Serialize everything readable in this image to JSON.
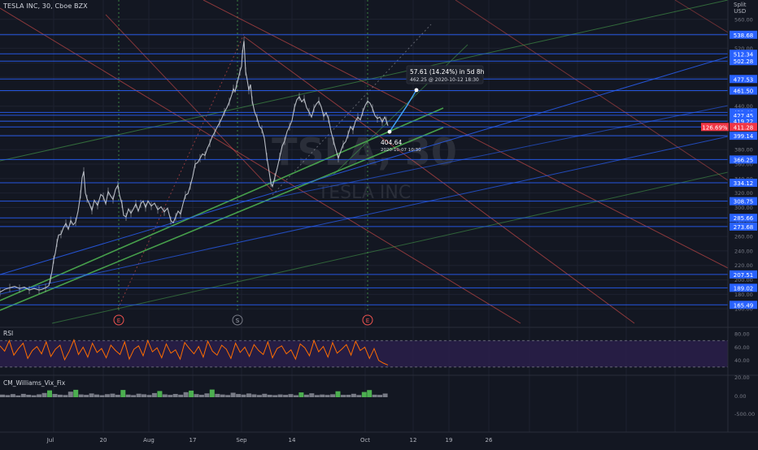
{
  "header": {
    "symbol_line": "TESLA INC, 30, Cboe BZX"
  },
  "currency": {
    "line1": "Split",
    "line2": "USD"
  },
  "watermark": {
    "ticker": "TSLA, 30",
    "name": "TESLA INC"
  },
  "colors": {
    "background": "#131722",
    "grid": "#1e2230",
    "level_line": "#2962ff",
    "price_line": "#c8ccd4",
    "green_line": "#4caf50",
    "red_line": "#ef5350",
    "rsi_line": "#ff6d00",
    "rsi_band": "#2a1f4a",
    "vix_green": "#4caf50",
    "vix_gray": "#787b86",
    "label_blue": "#2962ff",
    "label_red": "#f23645"
  },
  "chart_data": [
    {
      "type": "line",
      "title": "TESLA INC, 30, Cboe BZX",
      "series": [],
      "xlabel": "",
      "ylabel": "",
      "ylim": [
        140,
        580
      ],
      "x_ticks": [
        "Jul",
        "20",
        "Aug",
        "17",
        "Sep",
        "14",
        "Oct",
        "12",
        "19",
        "26"
      ],
      "y_ticks": [
        560,
        540,
        520,
        500,
        480,
        460,
        440,
        420,
        400,
        380,
        360,
        340,
        320,
        300,
        280,
        260,
        240,
        220,
        200,
        180,
        160
      ],
      "price_path": [
        [
          0,
          183
        ],
        [
          6,
          187
        ],
        [
          12,
          189
        ],
        [
          18,
          191
        ],
        [
          24,
          188
        ],
        [
          30,
          190
        ],
        [
          36,
          186
        ],
        [
          42,
          188
        ],
        [
          48,
          186
        ],
        [
          52,
          187
        ],
        [
          56,
          189
        ],
        [
          60,
          192
        ],
        [
          62,
          201
        ],
        [
          64,
          212
        ],
        [
          66,
          228
        ],
        [
          68,
          237
        ],
        [
          70,
          251
        ],
        [
          72,
          262
        ],
        [
          75,
          263
        ],
        [
          78,
          272
        ],
        [
          81,
          278
        ],
        [
          84,
          270
        ],
        [
          87,
          282
        ],
        [
          90,
          276
        ],
        [
          93,
          280
        ],
        [
          96,
          295
        ],
        [
          99,
          318
        ],
        [
          101,
          341
        ],
        [
          103,
          350
        ],
        [
          105,
          320
        ],
        [
          107,
          312
        ],
        [
          110,
          305
        ],
        [
          113,
          296
        ],
        [
          116,
          310
        ],
        [
          120,
          303
        ],
        [
          124,
          318
        ],
        [
          127,
          315
        ],
        [
          130,
          305
        ],
        [
          133,
          322
        ],
        [
          136,
          316
        ],
        [
          139,
          311
        ],
        [
          142,
          325
        ],
        [
          145,
          331
        ],
        [
          147,
          317
        ],
        [
          150,
          305
        ],
        [
          152,
          289
        ],
        [
          155,
          287
        ],
        [
          158,
          298
        ],
        [
          161,
          292
        ],
        [
          164,
          298
        ],
        [
          167,
          305
        ],
        [
          170,
          295
        ],
        [
          173,
          305
        ],
        [
          176,
          309
        ],
        [
          179,
          300
        ],
        [
          182,
          309
        ],
        [
          186,
          302
        ],
        [
          190,
          306
        ],
        [
          194,
          297
        ],
        [
          198,
          301
        ],
        [
          202,
          294
        ],
        [
          206,
          299
        ],
        [
          210,
          282
        ],
        [
          213,
          279
        ],
        [
          216,
          287
        ],
        [
          219,
          295
        ],
        [
          222,
          291
        ],
        [
          225,
          305
        ],
        [
          228,
          317
        ],
        [
          231,
          319
        ],
        [
          234,
          330
        ],
        [
          237,
          343
        ],
        [
          240,
          360
        ],
        [
          243,
          362
        ],
        [
          246,
          368
        ],
        [
          249,
          374
        ],
        [
          252,
          372
        ],
        [
          255,
          382
        ],
        [
          258,
          389
        ],
        [
          261,
          398
        ],
        [
          264,
          404
        ],
        [
          267,
          411
        ],
        [
          270,
          417
        ],
        [
          273,
          424
        ],
        [
          276,
          432
        ],
        [
          279,
          438
        ],
        [
          282,
          446
        ],
        [
          285,
          456
        ],
        [
          287,
          464
        ],
        [
          289,
          460
        ],
        [
          291,
          470
        ],
        [
          293,
          478
        ],
        [
          295,
          488
        ],
        [
          297,
          495
        ],
        [
          298,
          512
        ],
        [
          299,
          522
        ],
        [
          300,
          530
        ],
        [
          301,
          510
        ],
        [
          302,
          488
        ],
        [
          304,
          476
        ],
        [
          306,
          462
        ],
        [
          308,
          470
        ],
        [
          310,
          448
        ],
        [
          313,
          432
        ],
        [
          316,
          424
        ],
        [
          319,
          412
        ],
        [
          322,
          408
        ],
        [
          325,
          396
        ],
        [
          328,
          370
        ],
        [
          331,
          349
        ],
        [
          333,
          334
        ],
        [
          335,
          329
        ],
        [
          338,
          342
        ],
        [
          341,
          355
        ],
        [
          344,
          370
        ],
        [
          347,
          385
        ],
        [
          350,
          392
        ],
        [
          353,
          405
        ],
        [
          356,
          412
        ],
        [
          359,
          420
        ],
        [
          362,
          438
        ],
        [
          365,
          449
        ],
        [
          368,
          453
        ],
        [
          371,
          446
        ],
        [
          374,
          450
        ],
        [
          377,
          438
        ],
        [
          380,
          432
        ],
        [
          383,
          425
        ],
        [
          386,
          437
        ],
        [
          389,
          443
        ],
        [
          392,
          447
        ],
        [
          395,
          439
        ],
        [
          398,
          426
        ],
        [
          401,
          431
        ],
        [
          404,
          422
        ],
        [
          407,
          405
        ],
        [
          410,
          392
        ],
        [
          413,
          380
        ],
        [
          416,
          368
        ],
        [
          419,
          378
        ],
        [
          422,
          387
        ],
        [
          425,
          391
        ],
        [
          428,
          401
        ],
        [
          431,
          412
        ],
        [
          434,
          407
        ],
        [
          437,
          419
        ],
        [
          440,
          425
        ],
        [
          443,
          421
        ],
        [
          446,
          432
        ],
        [
          449,
          441
        ],
        [
          452,
          447
        ],
        [
          455,
          444
        ],
        [
          458,
          437
        ],
        [
          461,
          427
        ],
        [
          464,
          423
        ],
        [
          467,
          425
        ],
        [
          470,
          418
        ],
        [
          473,
          425
        ],
        [
          475,
          420
        ],
        [
          477,
          413
        ]
      ],
      "levels": [
        538.68,
        512.34,
        502.28,
        477.53,
        461.5,
        431.46,
        427.45,
        419.22,
        411.28,
        399.14,
        366.25,
        334.12,
        308.75,
        285.66,
        273.68,
        207.51,
        189.02,
        165.49
      ],
      "level_labels": [
        "538.68",
        "512.34",
        "502.28",
        "477.53",
        "461.50",
        "431.46",
        "427.45",
        "419.22",
        "411.28",
        "399.14",
        "366.25",
        "334.12",
        "308.75",
        "285.66",
        "273.68",
        "207.51",
        "189.02",
        "165.49"
      ],
      "current_price": 411.28,
      "current_label": "411.28",
      "percent_label": "126.69%",
      "annotations": {
        "projection_label": "57.61 (14.24%) in 5d 8h",
        "projection_sub": "462.25 @ 2020-10-12  18:30",
        "low_label": "404.64",
        "low_sub": "2020-10-07 10:30"
      },
      "markers": [
        "E",
        "S",
        "E"
      ]
    },
    {
      "type": "line",
      "title": "RSI",
      "series": [],
      "y_ticks": [
        80,
        60,
        40
      ],
      "band": [
        30,
        70
      ],
      "values": [
        62,
        54,
        70,
        48,
        58,
        66,
        43,
        55,
        61,
        50,
        68,
        46,
        57,
        63,
        41,
        54,
        71,
        49,
        60,
        45,
        66,
        52,
        58,
        44,
        63,
        55,
        49,
        68,
        42,
        57,
        62,
        47,
        70,
        53,
        59,
        44,
        65,
        51,
        56,
        42,
        67,
        58,
        50,
        61,
        45,
        69,
        54,
        48,
        63,
        57,
        43,
        66,
        52,
        60,
        46,
        64,
        55,
        49,
        68,
        44,
        58,
        62,
        50,
        56,
        42,
        65,
        59,
        47,
        70,
        53,
        61,
        45,
        67,
        51,
        57,
        64,
        48,
        69,
        55,
        60,
        43,
        58,
        40,
        36,
        33
      ]
    },
    {
      "type": "bar",
      "title": "CM_Williams_Vix_Fix",
      "series": [],
      "y_ticks": [
        "20.00",
        "0.00",
        "-500.00"
      ],
      "values": [
        3.2,
        2.6,
        3.8,
        2.2,
        4.1,
        3.0,
        2.4,
        3.5,
        5.2,
        8.4,
        4.0,
        3.1,
        2.7,
        6.8,
        9.1,
        3.4,
        2.9,
        4.6,
        3.3,
        2.5,
        3.7,
        4.4,
        3.0,
        8.9,
        3.2,
        2.6,
        4.3,
        3.6,
        2.8,
        5.1,
        7.6,
        3.5,
        2.9,
        4.0,
        3.1,
        6.2,
        8.1,
        3.8,
        3.0,
        4.7,
        9.4,
        4.1,
        3.3,
        2.7,
        5.5,
        3.9,
        3.2,
        4.6,
        3.5,
        2.8,
        4.2,
        3.0,
        2.6,
        3.4,
        2.9,
        3.8,
        2.5,
        5.9,
        3.1,
        4.8,
        2.7,
        3.3,
        2.8,
        3.6,
        7.3,
        2.9,
        3.0,
        4.2,
        2.7,
        6.4,
        8.8,
        3.1,
        2.9,
        4.5
      ],
      "green_indices": [
        9,
        14,
        23,
        30,
        36,
        40,
        57,
        64,
        69,
        70
      ]
    }
  ]
}
